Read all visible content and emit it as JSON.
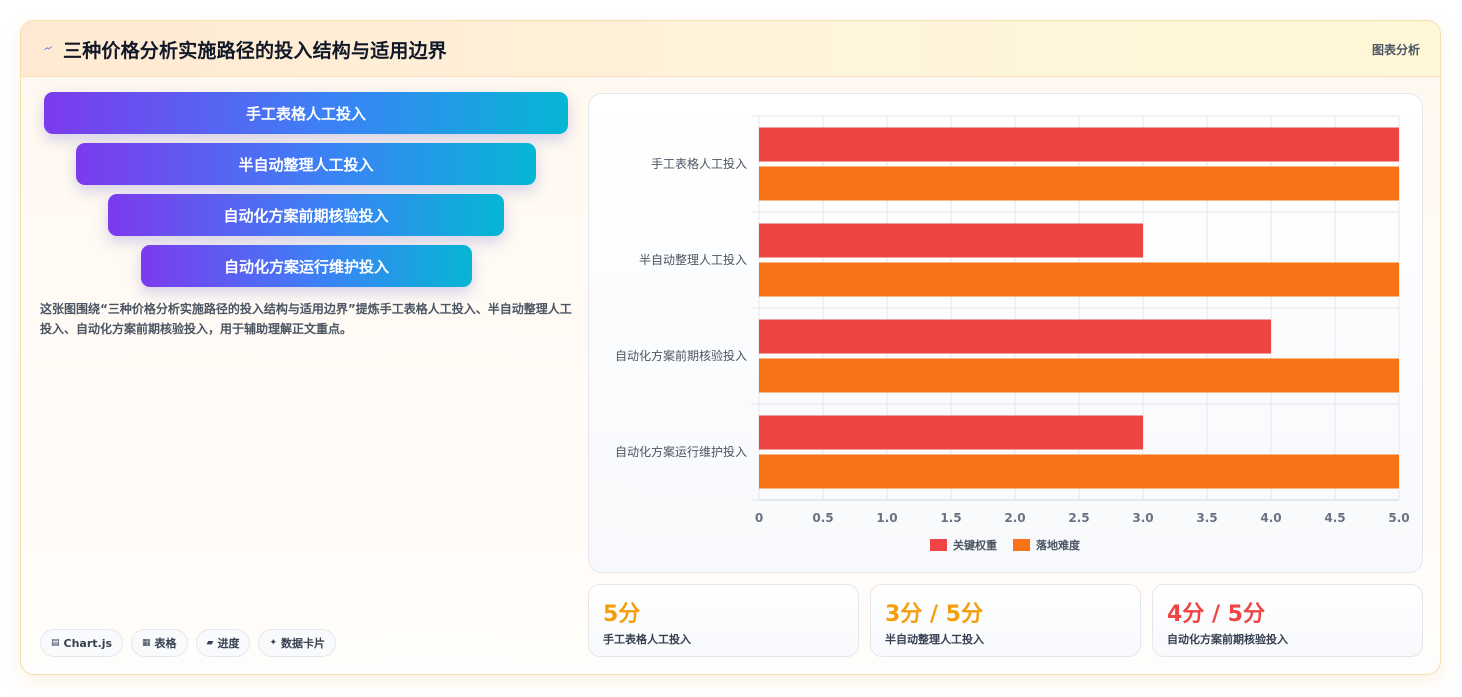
{
  "header": {
    "title": "三种价格分析实施路径的投入结构与适用边界",
    "tag": "图表分析",
    "icon": "lightning-icon"
  },
  "funnel": {
    "items": [
      "手工表格人工投入",
      "半自动整理人工投入",
      "自动化方案前期核验投入",
      "自动化方案运行维护投入"
    ]
  },
  "description": "这张图围绕“三种价格分析实施路径的投入结构与适用边界”提炼手工表格人工投入、半自动整理人工投入、自动化方案前期核验投入，用于辅助理解正文重点。",
  "chips": [
    {
      "icon": "chart-icon",
      "label": "Chart.js"
    },
    {
      "icon": "table-icon",
      "label": "表格"
    },
    {
      "icon": "progress-icon",
      "label": "进度"
    },
    {
      "icon": "sparkle-icon",
      "label": "数据卡片"
    }
  ],
  "stats": [
    {
      "value": "5分",
      "label": "手工表格人工投入",
      "color": "#f59e0b"
    },
    {
      "value": "3分 / 5分",
      "label": "半自动整理人工投入",
      "color": "#f59e0b"
    },
    {
      "value": "4分 / 5分",
      "label": "自动化方案前期核验投入",
      "color": "#ef4444"
    }
  ],
  "chart_data": {
    "type": "bar",
    "orientation": "horizontal",
    "categories": [
      "手工表格人工投入",
      "半自动整理人工投入",
      "自动化方案前期核验投入",
      "自动化方案运行维护投入"
    ],
    "series": [
      {
        "name": "关键权重",
        "values": [
          5,
          3,
          4,
          3
        ],
        "color": "#ef4444"
      },
      {
        "name": "落地难度",
        "values": [
          5,
          5,
          5,
          5
        ],
        "color": "#f97316"
      }
    ],
    "xlim": [
      0,
      5
    ],
    "xticks": [
      "0",
      "0.5",
      "1.0",
      "1.5",
      "2.0",
      "2.5",
      "3.0",
      "3.5",
      "4.0",
      "4.5",
      "5.0"
    ],
    "grid": true,
    "legend": "bottom"
  }
}
